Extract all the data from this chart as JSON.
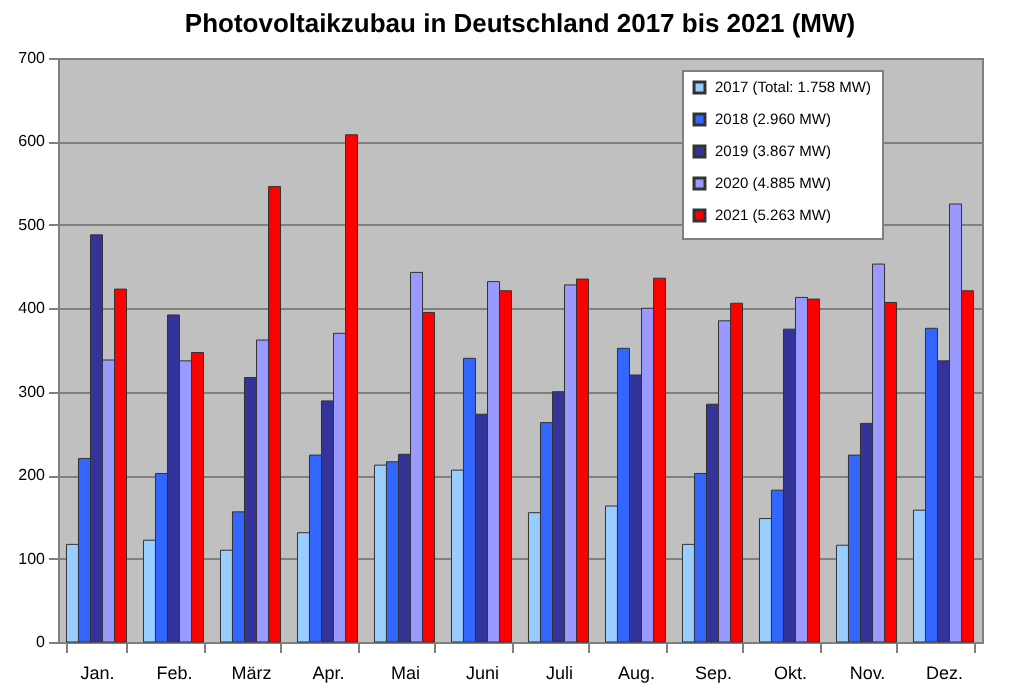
{
  "chart_data": {
    "type": "bar",
    "title": "Photovoltaikzubau in Deutschland 2017 bis 2021 (MW)",
    "categories": [
      "Jan.",
      "Feb.",
      "März",
      "Apr.",
      "Mai",
      "Juni",
      "Juli",
      "Aug.",
      "Sep.",
      "Okt.",
      "Nov.",
      "Dez."
    ],
    "series": [
      {
        "name": "2017 (Total: 1.758 MW)",
        "color": "#99ccff",
        "values": [
          117,
          122,
          110,
          131,
          212,
          206,
          155,
          163,
          117,
          148,
          116,
          158
        ]
      },
      {
        "name": "2018 (2.960 MW)",
        "color": "#3366ff",
        "values": [
          220,
          202,
          156,
          224,
          216,
          340,
          263,
          352,
          202,
          182,
          224,
          376
        ]
      },
      {
        "name": "2019 (3.867 MW)",
        "color": "#333399",
        "values": [
          488,
          392,
          317,
          289,
          225,
          273,
          300,
          320,
          285,
          375,
          262,
          337
        ]
      },
      {
        "name": "2020 (4.885 MW)",
        "color": "#9999ff",
        "values": [
          338,
          337,
          362,
          370,
          443,
          432,
          428,
          400,
          385,
          413,
          453,
          525
        ]
      },
      {
        "name": "2021 (5.263 MW)",
        "color": "#ff0000",
        "values": [
          423,
          347,
          546,
          608,
          395,
          421,
          435,
          436,
          406,
          411,
          407,
          421
        ]
      }
    ],
    "ylim": [
      0,
      700
    ],
    "yticks": [
      0,
      100,
      200,
      300,
      400,
      500,
      600,
      700
    ],
    "grid": "y",
    "legend": "top right"
  }
}
